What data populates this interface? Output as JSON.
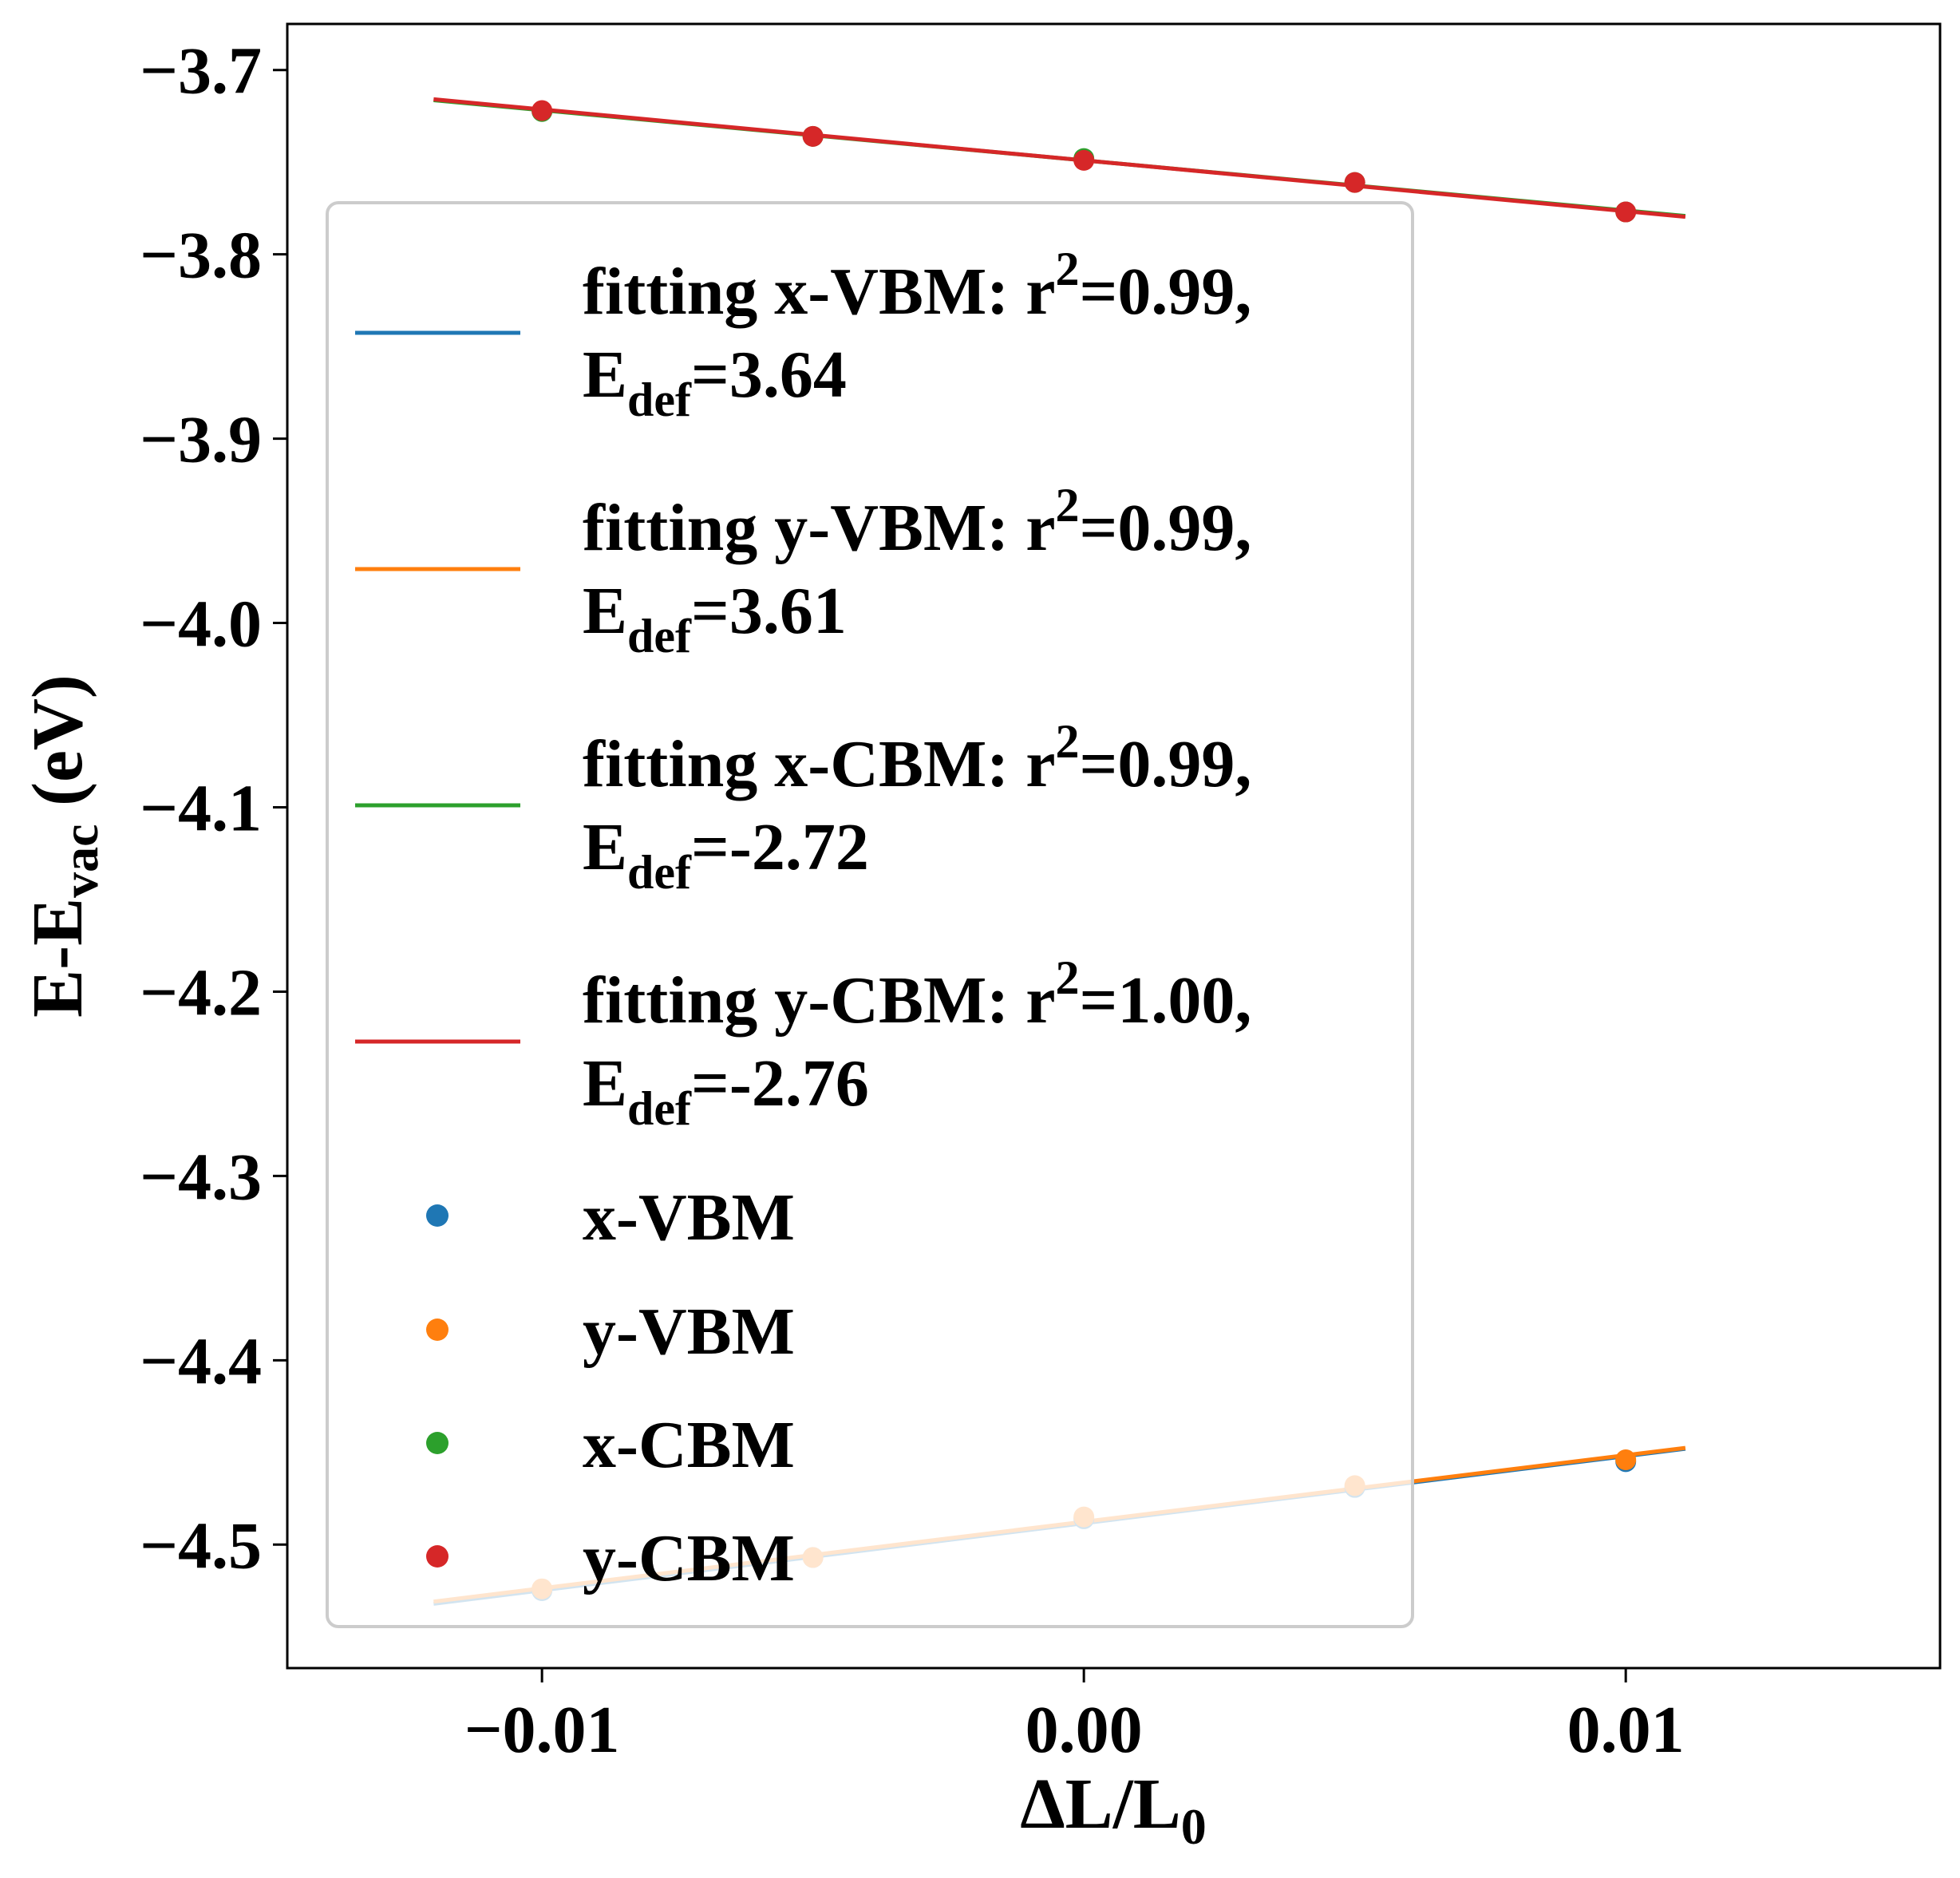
{
  "chart_data": {
    "type": "scatter",
    "title": "",
    "xlabel": {
      "main": "ΔL/L",
      "sub": "0"
    },
    "ylabel": {
      "main": "E-E",
      "sub": "vac",
      "suffix": " (eV)"
    },
    "xlim": [
      -0.0147,
      0.0158
    ],
    "ylim": [
      -4.567,
      -3.675
    ],
    "xticks": [
      -0.01,
      0.0,
      0.01
    ],
    "xtick_labels": [
      "−0.01",
      "0.00",
      "0.01"
    ],
    "yticks": [
      -3.7,
      -3.8,
      -3.9,
      -4.0,
      -4.1,
      -4.2,
      -4.3,
      -4.4,
      -4.5
    ],
    "ytick_labels": [
      "−3.7",
      "−3.8",
      "−3.9",
      "−4.0",
      "−4.1",
      "−4.2",
      "−4.3",
      "−4.4",
      "−4.5"
    ],
    "grid": false,
    "legend_position": "center-left, overlapping plot area",
    "fit_x_range": [
      -0.012,
      0.0111
    ],
    "series": [
      {
        "name": "x-VBM",
        "color": "#1f77b4",
        "x": [
          -0.01,
          -0.005,
          0.0,
          0.005,
          0.01
        ],
        "y": [
          -4.525,
          -4.507,
          -4.486,
          -4.469,
          -4.455
        ],
        "fit": {
          "legend_line1": "fitting x-VBM: r",
          "sup": "2",
          "legend_line1_end": "=0.99,",
          "legend_line2": "E",
          "sub": "def",
          "legend_line2_end": "=3.64",
          "slope": 3.64,
          "intercept": -4.4884
        }
      },
      {
        "name": "y-VBM",
        "color": "#ff7f0e",
        "x": [
          -0.01,
          -0.005,
          0.0,
          0.005,
          0.01
        ],
        "y": [
          -4.524,
          -4.507,
          -4.485,
          -4.468,
          -4.454
        ],
        "fit": {
          "legend_line1": "fitting y-VBM: r",
          "sup": "2",
          "legend_line1_end": "=0.99,",
          "legend_line2": "E",
          "sub": "def",
          "legend_line2_end": "=3.61",
          "slope": 3.61,
          "intercept": -4.4876
        }
      },
      {
        "name": "x-CBM",
        "color": "#2ca02c",
        "x": [
          -0.01,
          -0.005,
          0.0,
          0.005,
          0.01
        ],
        "y": [
          -3.7225,
          -3.736,
          -3.748,
          -3.761,
          -3.777
        ],
        "fit": {
          "legend_line1": "fitting x-CBM: r",
          "sup": "2",
          "legend_line1_end": "=0.99,",
          "legend_line2": "E",
          "sub": "def",
          "legend_line2_end": "=-2.72",
          "slope": -2.72,
          "intercept": -3.749
        }
      },
      {
        "name": "y-CBM",
        "color": "#d62728",
        "x": [
          -0.01,
          -0.005,
          0.0,
          0.005,
          0.01
        ],
        "y": [
          -3.722,
          -3.736,
          -3.749,
          -3.761,
          -3.777
        ],
        "fit": {
          "legend_line1": "fitting y-CBM: r",
          "sup": "2",
          "legend_line1_end": "=1.00,",
          "legend_line2": "E",
          "sub": "def",
          "legend_line2_end": "=-2.76",
          "slope": -2.76,
          "intercept": -3.749
        }
      }
    ]
  }
}
